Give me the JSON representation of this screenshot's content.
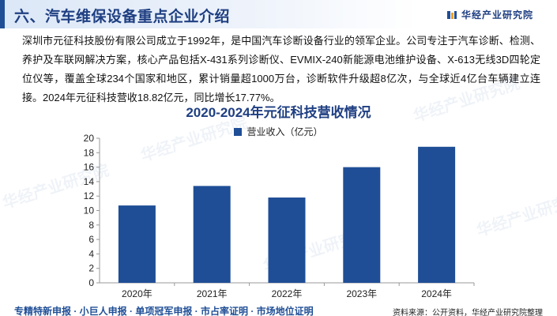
{
  "header": {
    "section_title": "六、汽车维保设备重点企业介绍",
    "brand_name": "华经产业研究院"
  },
  "intro": "深圳市元征科技股份有限公司成立于1992年，是中国汽车诊断设备行业的领军企业。公司专注于汽车诊断、检测、养护及车联网解决方案，核心产品包括X-431系列诊断仪、EVMIX-240新能源电池维护设备、X-613无线3D四轮定位仪等，覆盖全球234个国家和地区，累计销量超1000万台，诊断软件升级超8亿次，与全球近4亿台车辆建立连接。2024年元征科技营收18.82亿元，同比增长17.77%。",
  "chart_data": {
    "type": "bar",
    "title": "2020-2024年元征科技营收情况",
    "categories": [
      "2020年",
      "2021年",
      "2022年",
      "2023年",
      "2024年"
    ],
    "series": [
      {
        "name": "营业收入（亿元）",
        "values": [
          10.7,
          13.4,
          11.8,
          16.0,
          18.82
        ],
        "color": "#1f4e96"
      }
    ],
    "ylim": [
      0,
      20
    ],
    "yticks": [
      "0",
      "2",
      "4",
      "6",
      "8",
      "10",
      "12",
      "14",
      "16",
      "18",
      "20"
    ],
    "xlabel": "",
    "ylabel": "",
    "grid": false,
    "legend_position": "top-center"
  },
  "footer": {
    "left": "专精特新申报 · 小巨人申报 · 单项冠军申报 · 市占率证明 · 市场地位证明",
    "source": "资料来源：公开资料，华经产业研究院整理"
  },
  "watermark_text": "华经产业研究院",
  "colors": {
    "accent": "#1f4e96",
    "title": "#1f3f82"
  }
}
